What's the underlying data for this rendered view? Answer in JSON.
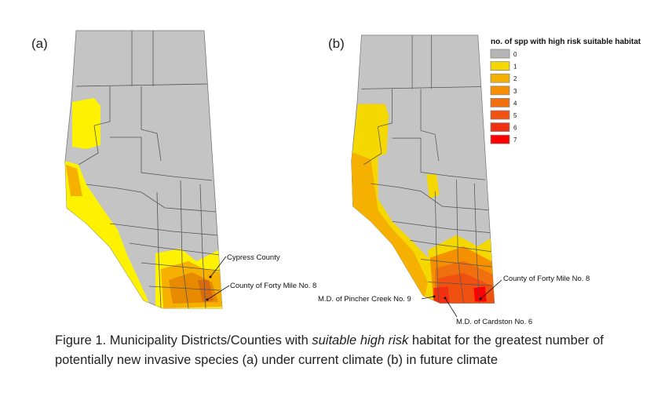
{
  "panels": [
    {
      "label": "(a)",
      "annotations": [
        "Cypress County",
        "County of Forty Mile No. 8"
      ]
    },
    {
      "label": "(b)",
      "annotations": [
        "County of Forty Mile No. 8",
        "M.D. of Pincher Creek No. 9",
        "M.D. of Cardston No. 6"
      ]
    }
  ],
  "legend": {
    "title": "no. of spp with high risk suitable habitat",
    "items": [
      {
        "value": "0",
        "color": "#b5b5b5"
      },
      {
        "value": "1",
        "color": "#f5d800"
      },
      {
        "value": "2",
        "color": "#f5b000"
      },
      {
        "value": "3",
        "color": "#f59000"
      },
      {
        "value": "4",
        "color": "#f07010"
      },
      {
        "value": "5",
        "color": "#f05010"
      },
      {
        "value": "6",
        "color": "#f03010"
      },
      {
        "value": "7",
        "color": "#ff0000"
      }
    ]
  },
  "caption": {
    "line1_prefix": "Figure 1. Municipality Districts/Counties with ",
    "line1_italic": "suitable high risk",
    "line1_suffix": " habitat for the greatest number of",
    "line2": "potentially new invasive species (a) under current climate (b) in future climate"
  }
}
